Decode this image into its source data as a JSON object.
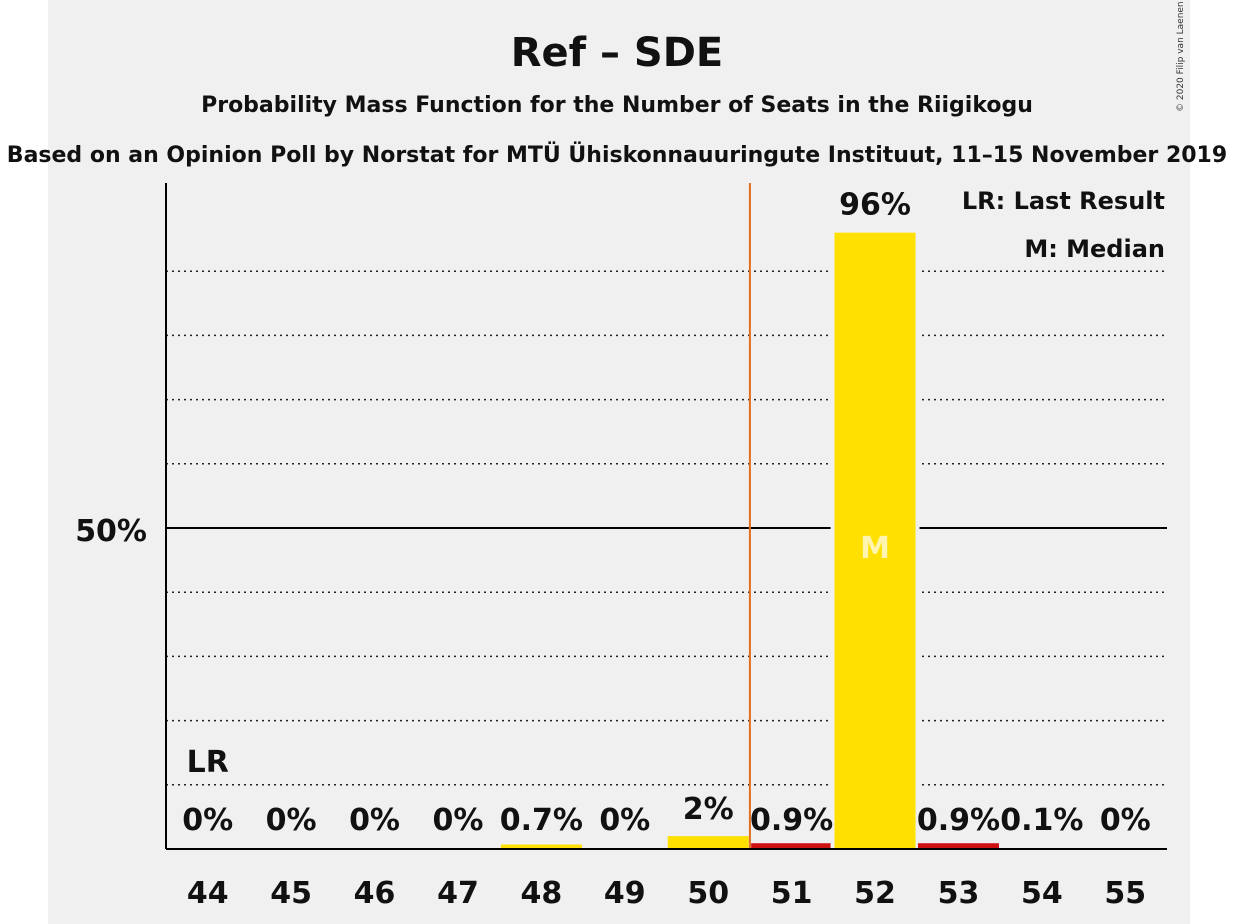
{
  "chart_data": {
    "type": "bar",
    "title": "Ref – SDE",
    "subtitle": "Probability Mass Function for the Number of Seats in the Riigikogu",
    "subtitle2": "Based on an Opinion Poll by Norstat for MTÜ Ühiskonnauuringute Instituut, 11–15 November 2019",
    "copyright": "© 2020 Filip van Laenen",
    "categories": [
      "44",
      "45",
      "46",
      "47",
      "48",
      "49",
      "50",
      "51",
      "52",
      "53",
      "54",
      "55"
    ],
    "values": [
      0,
      0,
      0,
      0,
      0.7,
      0,
      2,
      0.9,
      96,
      0.9,
      0.1,
      0
    ],
    "value_labels": [
      "0%",
      "0%",
      "0%",
      "0%",
      "0.7%",
      "0%",
      "2%",
      "0.9%",
      "96%",
      "0.9%",
      "0.1%",
      "0%"
    ],
    "bar_colors": [
      "#ffe000",
      "#ffe000",
      "#ffe000",
      "#ffe000",
      "#ffe000",
      "#ffe000",
      "#ffe000",
      "#cc1111",
      "#ffe000",
      "#cc1111",
      "#ffe000",
      "#ffe000"
    ],
    "ylim": [
      0,
      105
    ],
    "y_tick_label": "50%",
    "y_tick_value": 50,
    "gridlines": [
      10,
      20,
      30,
      40,
      60,
      70,
      80,
      90
    ],
    "last_result": {
      "category": "44",
      "label": "LR"
    },
    "median": {
      "category": "52",
      "label": "M"
    },
    "majority_line_after": "50",
    "legend": {
      "placement": "top-right",
      "items": [
        "LR: Last Result",
        "M: Median"
      ]
    },
    "colors": {
      "bar": "#ffe000",
      "bar_red": "#cc1111",
      "majority_line": "#e07020",
      "median_text": "#fff4b0"
    }
  }
}
